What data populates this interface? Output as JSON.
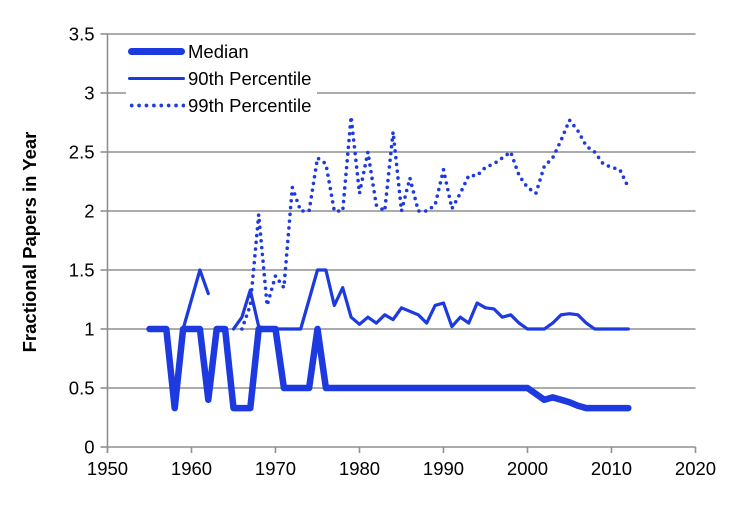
{
  "chart_data": {
    "type": "line",
    "title": "",
    "xlabel": "",
    "ylabel": "Fractional Papers in Year",
    "xlim": [
      1950,
      2020
    ],
    "ylim": [
      0,
      3.5
    ],
    "x_ticks": [
      "1950",
      "1960",
      "1970",
      "1980",
      "1990",
      "2000",
      "2010",
      "2020"
    ],
    "y_ticks": [
      "0",
      "0.5",
      "1",
      "1.5",
      "2",
      "2.5",
      "3",
      "3.5"
    ],
    "grid": "horizontal-gray",
    "legend_position": "top-left-inside",
    "colors": {
      "line_blue": "#1c3ae0",
      "grid_gray": "#8f8f8f",
      "text": "#000000",
      "background": "#ffffff"
    },
    "series": [
      {
        "name": "Median",
        "style": "thick-solid",
        "x": [
          1955,
          1956,
          1957,
          1958,
          1959,
          1960,
          1961,
          1962,
          1963,
          1964,
          1965,
          1966,
          1967,
          1968,
          1969,
          1970,
          1971,
          1972,
          1973,
          1974,
          1975,
          1976,
          1977,
          1978,
          1979,
          1980,
          1981,
          1982,
          1983,
          1984,
          1985,
          1986,
          1987,
          1988,
          1989,
          1990,
          1991,
          1992,
          1993,
          1994,
          1995,
          1996,
          1997,
          1998,
          1999,
          2000,
          2001,
          2002,
          2003,
          2004,
          2005,
          2006,
          2007,
          2008,
          2009,
          2010,
          2011,
          2012
        ],
        "y": [
          1,
          1,
          1,
          0.33,
          1,
          1,
          1,
          0.4,
          1,
          1,
          0.33,
          0.33,
          0.33,
          1,
          1,
          1,
          0.5,
          0.5,
          0.5,
          0.5,
          1,
          0.5,
          0.5,
          0.5,
          0.5,
          0.5,
          0.5,
          0.5,
          0.5,
          0.5,
          0.5,
          0.5,
          0.5,
          0.5,
          0.5,
          0.5,
          0.5,
          0.5,
          0.5,
          0.5,
          0.5,
          0.5,
          0.5,
          0.5,
          0.5,
          0.5,
          0.45,
          0.4,
          0.42,
          0.4,
          0.38,
          0.35,
          0.33,
          0.33,
          0.33,
          0.33,
          0.33,
          0.33
        ]
      },
      {
        "name": "90th Percentile",
        "style": "solid",
        "x": [
          1955,
          1956,
          1957,
          1958,
          1959,
          1960,
          1961,
          1962,
          1963,
          1964,
          1965,
          1966,
          1967,
          1968,
          1969,
          1970,
          1971,
          1972,
          1973,
          1974,
          1975,
          1976,
          1977,
          1978,
          1979,
          1980,
          1981,
          1982,
          1983,
          1984,
          1985,
          1986,
          1987,
          1988,
          1989,
          1990,
          1991,
          1992,
          1993,
          1994,
          1995,
          1996,
          1997,
          1998,
          1999,
          2000,
          2001,
          2002,
          2003,
          2004,
          2005,
          2006,
          2007,
          2008,
          2009,
          2010,
          2011,
          2012
        ],
        "y": [
          1,
          1,
          1,
          0.33,
          1,
          1.25,
          1.5,
          1.3,
          null,
          null,
          1,
          1.1,
          1.33,
          1.02,
          1,
          1,
          1,
          1,
          1,
          1.25,
          1.5,
          1.5,
          1.2,
          1.35,
          1.1,
          1.04,
          1.1,
          1.05,
          1.12,
          1.08,
          1.18,
          1.15,
          1.12,
          1.05,
          1.2,
          1.22,
          1.02,
          1.1,
          1.05,
          1.22,
          1.18,
          1.17,
          1.1,
          1.12,
          1.05,
          1,
          1,
          1,
          1.05,
          1.12,
          1.13,
          1.12,
          1.05,
          1,
          1,
          1,
          1,
          1
        ]
      },
      {
        "name": "99th Percentile",
        "style": "dotted",
        "x": [
          1966,
          1967,
          1968,
          1969,
          1970,
          1971,
          1972,
          1973,
          1974,
          1975,
          1976,
          1977,
          1978,
          1979,
          1980,
          1981,
          1982,
          1983,
          1984,
          1985,
          1986,
          1987,
          1988,
          1989,
          1990,
          1991,
          1992,
          1993,
          1994,
          1995,
          1996,
          1997,
          1998,
          1999,
          2000,
          2001,
          2002,
          2003,
          2004,
          2005,
          2006,
          2007,
          2008,
          2009,
          2010,
          2011,
          2012
        ],
        "y": [
          1,
          1.2,
          1.97,
          1.2,
          1.45,
          1.35,
          2.2,
          2,
          2,
          2.45,
          2.4,
          2,
          2,
          2.8,
          2.15,
          2.5,
          2.05,
          2,
          2.67,
          2,
          2.28,
          2,
          2,
          2.05,
          2.35,
          2.02,
          2.15,
          2.3,
          2.3,
          2.37,
          2.4,
          2.45,
          2.5,
          2.3,
          2.2,
          2.15,
          2.38,
          2.45,
          2.6,
          2.77,
          2.68,
          2.55,
          2.5,
          2.4,
          2.37,
          2.35,
          2.2
        ]
      }
    ]
  },
  "legend": {
    "items": [
      {
        "label": "Median"
      },
      {
        "label": "90th Percentile"
      },
      {
        "label": "99th Percentile"
      }
    ]
  }
}
